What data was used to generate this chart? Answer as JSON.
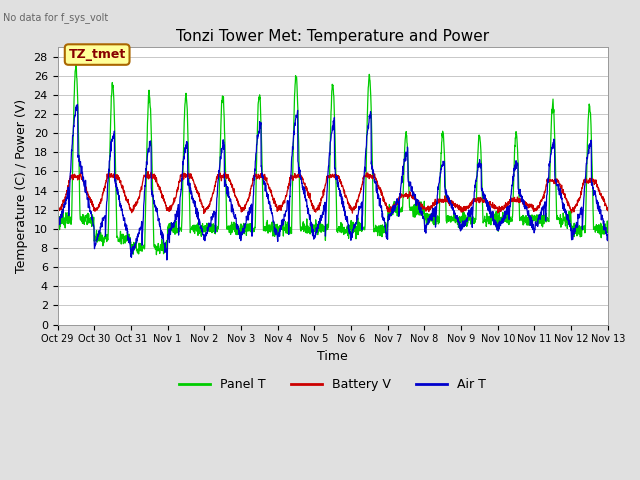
{
  "title": "Tonzi Tower Met: Temperature and Power",
  "ylabel": "Temperature (C) / Power (V)",
  "xlabel": "Time",
  "no_data_text": "No data for f_sys_volt",
  "annotation_text": "TZ_tmet",
  "ylim": [
    0,
    29
  ],
  "yticks": [
    0,
    2,
    4,
    6,
    8,
    10,
    12,
    14,
    16,
    18,
    20,
    22,
    24,
    26,
    28
  ],
  "x_tick_labels": [
    "Oct 29",
    "Oct 30",
    "Oct 31",
    "Nov 1",
    "Nov 2",
    "Nov 3",
    "Nov 4",
    "Nov 5",
    "Nov 6",
    "Nov 7",
    "Nov 8",
    "Nov 9",
    "Nov 10",
    "Nov 11",
    "Nov 12",
    "Nov 13"
  ],
  "panel_t_color": "#00CC00",
  "battery_v_color": "#CC0000",
  "air_t_color": "#0000CC",
  "bg_color": "#E0E0E0",
  "plot_bg_color": "#FFFFFF",
  "grid_color": "#C8C8C8",
  "title_fontsize": 11,
  "label_fontsize": 9,
  "tick_fontsize": 8,
  "legend_fontsize": 9,
  "figwidth": 6.4,
  "figheight": 4.8,
  "dpi": 100
}
